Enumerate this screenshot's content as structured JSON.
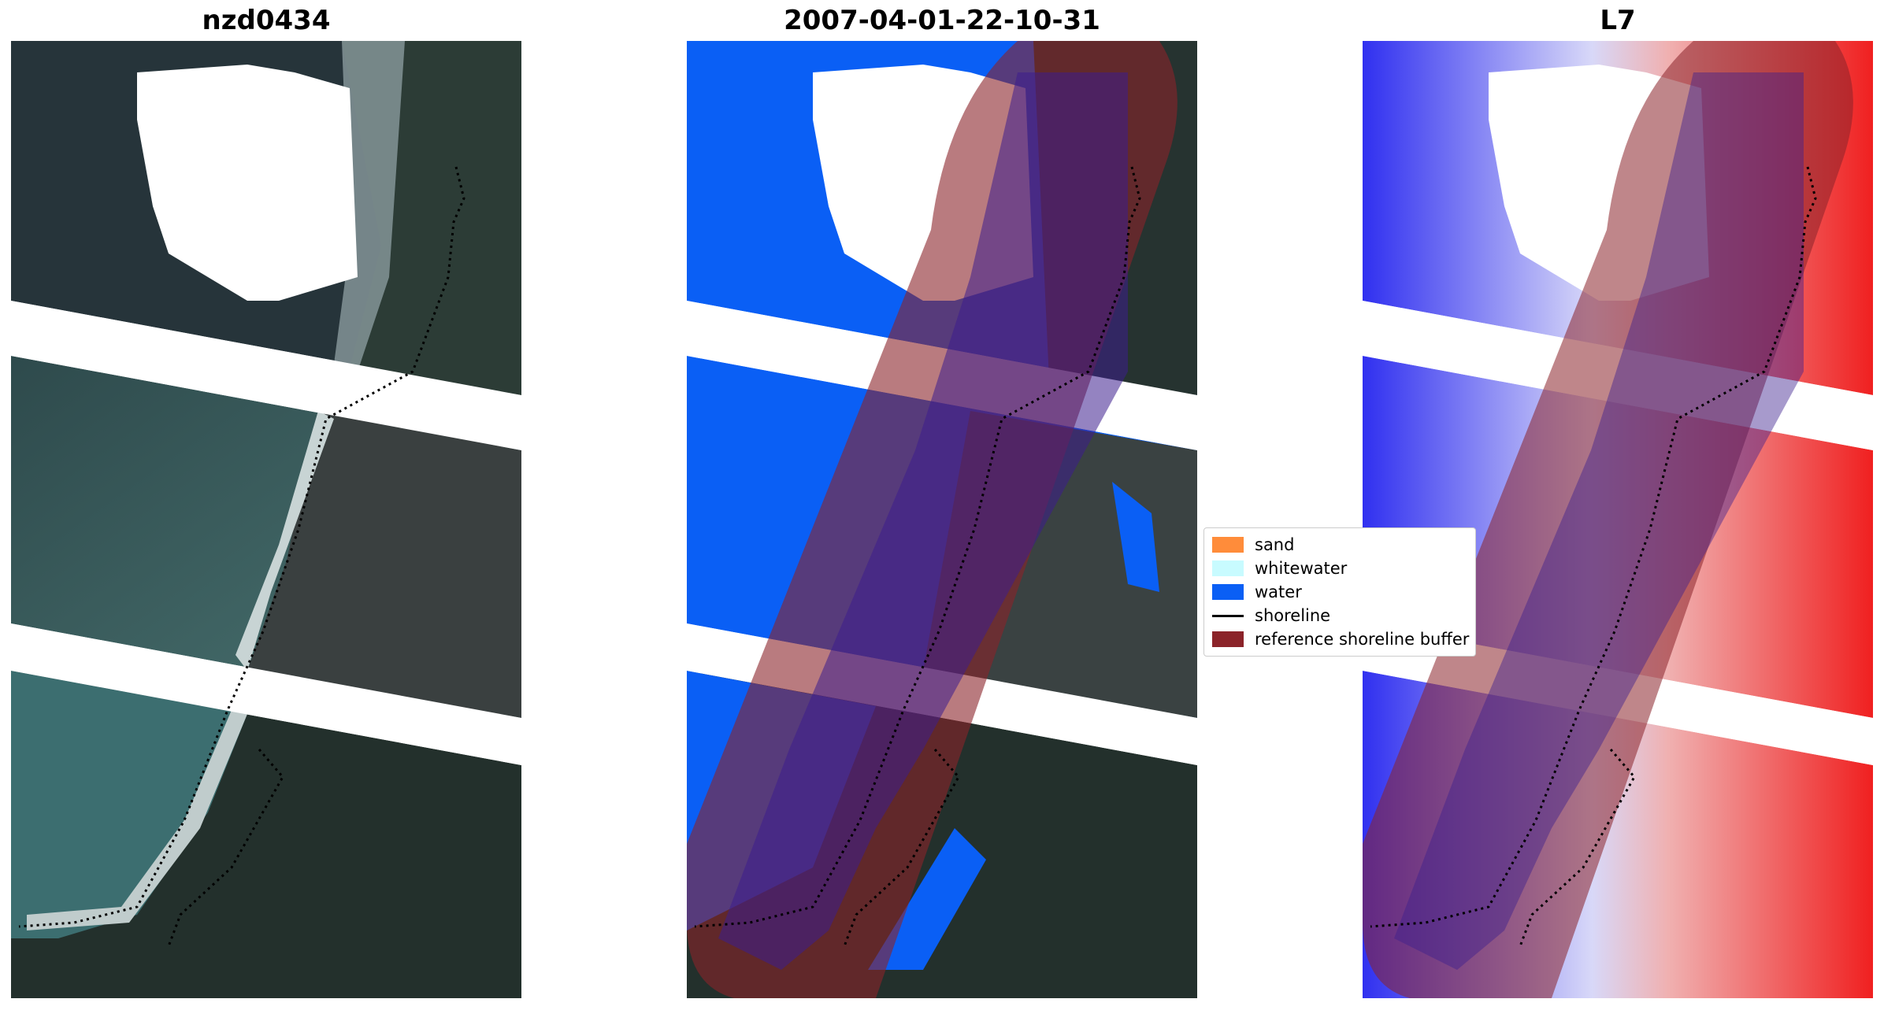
{
  "panels": [
    {
      "title": "nzd0434",
      "colormap": "rgb"
    },
    {
      "title": "2007-04-01-22-10-31",
      "colormap": "classified"
    },
    {
      "title": "L7",
      "colormap": "bwr"
    }
  ],
  "legend": {
    "items": [
      {
        "label": "sand",
        "kind": "patch",
        "color": "#ff8c3a"
      },
      {
        "label": "whitewater",
        "kind": "patch",
        "color": "#c8fbff"
      },
      {
        "label": "water",
        "kind": "patch",
        "color": "#0a5ff5"
      },
      {
        "label": "shoreline",
        "kind": "line",
        "color": "#000000"
      },
      {
        "label": "reference shoreline buffer",
        "kind": "patch",
        "color": "#8b2329"
      }
    ]
  },
  "colors": {
    "buffer_overlay": "#b24a84",
    "water": "#0a5ff5",
    "land_dark": "#25302f",
    "sea_teal": "#3a5a58"
  }
}
